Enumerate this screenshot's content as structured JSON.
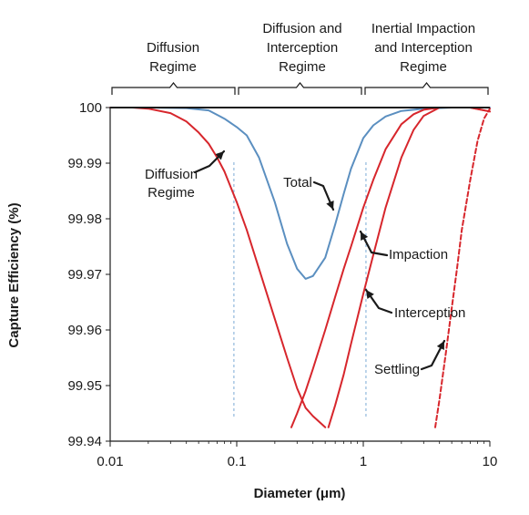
{
  "chart_data": {
    "type": "line",
    "title": "",
    "xlabel": "Diameter (μm)",
    "ylabel": "Capture Efficiency (%)",
    "x_scale": "log",
    "xlim": [
      0.01,
      10
    ],
    "ylim": [
      99.94,
      100
    ],
    "x_ticks": [
      0.01,
      0.1,
      1,
      10
    ],
    "x_tick_labels": [
      "0.01",
      "0.1",
      "1",
      "10"
    ],
    "y_ticks": [
      99.94,
      99.95,
      99.96,
      99.97,
      99.98,
      99.99,
      100
    ],
    "y_tick_labels": [
      "99.94",
      "99.95",
      "99.96",
      "99.97",
      "99.98",
      "99.99",
      "100"
    ],
    "grid": false,
    "legend": "none",
    "regimes": [
      {
        "label_lines": [
          "Diffusion",
          "Regime"
        ],
        "x_range": [
          0.01,
          0.1
        ]
      },
      {
        "label_lines": [
          "Diffusion and",
          "Interception",
          "Regime"
        ],
        "x_range": [
          0.1,
          1
        ]
      },
      {
        "label_lines": [
          "Inertial Impaction",
          "and Interception",
          "Regime"
        ],
        "x_range": [
          1,
          10
        ]
      }
    ],
    "vertical_guides": [
      0.095,
      1.05
    ],
    "annotations": [
      {
        "id": "diffusion",
        "lines": [
          "Diffusion",
          "Regime"
        ]
      },
      {
        "id": "total",
        "lines": [
          "Total"
        ]
      },
      {
        "id": "impaction",
        "lines": [
          "Impaction"
        ]
      },
      {
        "id": "interception",
        "lines": [
          "Interception"
        ]
      },
      {
        "id": "settling",
        "lines": [
          "Settling"
        ]
      }
    ],
    "series": [
      {
        "id": "total",
        "color": "#5b8fc0",
        "dash": false,
        "x": [
          0.01,
          0.02,
          0.04,
          0.06,
          0.08,
          0.1,
          0.12,
          0.15,
          0.2,
          0.25,
          0.3,
          0.35,
          0.4,
          0.5,
          0.6,
          0.7,
          0.8,
          1,
          1.2,
          1.5,
          2,
          3,
          5,
          10
        ],
        "y": [
          100,
          100,
          99.9999,
          99.9995,
          99.998,
          99.9965,
          99.995,
          99.991,
          99.983,
          99.9755,
          99.971,
          99.9692,
          99.9697,
          99.973,
          99.979,
          99.9845,
          99.989,
          99.9945,
          99.9968,
          99.9984,
          99.9994,
          99.9998,
          100,
          100
        ]
      },
      {
        "id": "diffusion",
        "color": "#d7262c",
        "dash": false,
        "x": [
          0.01,
          0.015,
          0.02,
          0.03,
          0.04,
          0.05,
          0.06,
          0.07,
          0.08,
          0.1,
          0.12,
          0.15,
          0.2,
          0.25,
          0.3,
          0.35,
          0.4,
          0.5
        ],
        "y": [
          100,
          100,
          99.9998,
          99.999,
          99.9975,
          99.9955,
          99.9935,
          99.991,
          99.9885,
          99.983,
          99.978,
          99.971,
          99.962,
          99.955,
          99.9495,
          99.946,
          99.9445,
          99.9425
        ]
      },
      {
        "id": "interception",
        "color": "#d7262c",
        "dash": false,
        "x": [
          0.27,
          0.3,
          0.35,
          0.4,
          0.5,
          0.6,
          0.7,
          0.8,
          1,
          1.2,
          1.5,
          2,
          2.5,
          3,
          4,
          5,
          7,
          10
        ],
        "y": [
          99.9425,
          99.945,
          99.949,
          99.953,
          99.96,
          99.966,
          99.971,
          99.975,
          99.982,
          99.987,
          99.9925,
          99.997,
          99.9988,
          99.9996,
          100,
          100,
          100,
          99.9993
        ]
      },
      {
        "id": "impaction",
        "color": "#d7262c",
        "dash": false,
        "x": [
          0.53,
          0.6,
          0.7,
          0.8,
          1,
          1.2,
          1.5,
          2,
          2.5,
          3,
          4,
          5,
          7,
          10
        ],
        "y": [
          99.9425,
          99.9465,
          99.952,
          99.9575,
          99.9665,
          99.9735,
          99.982,
          99.991,
          99.996,
          99.9985,
          100,
          100,
          100,
          99.9993
        ]
      },
      {
        "id": "settling",
        "color": "#d7262c",
        "dash": true,
        "x": [
          3.7,
          4,
          4.5,
          5,
          5.5,
          6,
          7,
          8,
          9,
          10
        ],
        "y": [
          99.9425,
          99.9475,
          99.956,
          99.964,
          99.971,
          99.978,
          99.987,
          99.994,
          99.998,
          99.9998
        ]
      }
    ]
  }
}
